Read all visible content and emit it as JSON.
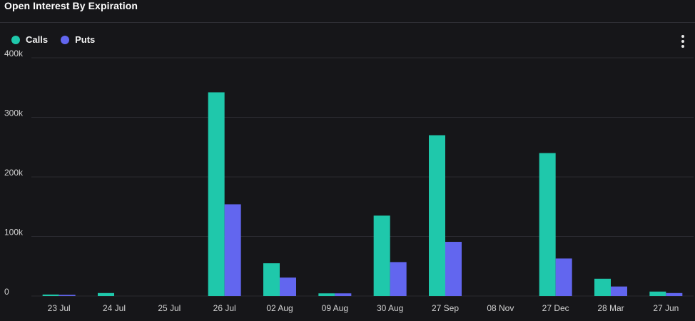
{
  "header": {
    "title": "Open Interest By Expiration"
  },
  "legend": {
    "items": [
      {
        "label": "Calls",
        "color": "#1fc8ab"
      },
      {
        "label": "Puts",
        "color": "#6266ef"
      }
    ]
  },
  "menu": {
    "icon": "more-vertical-icon"
  },
  "chart_data": {
    "type": "bar",
    "title": "Open Interest By Expiration",
    "categories": [
      "23 Jul",
      "24 Jul",
      "25 Jul",
      "26 Jul",
      "02 Aug",
      "09 Aug",
      "30 Aug",
      "27 Sep",
      "08 Nov",
      "27 Dec",
      "28 Mar",
      "27 Jun"
    ],
    "series": [
      {
        "name": "Calls",
        "color": "#1fc8ab",
        "values": [
          2500,
          5000,
          0,
          342000,
          55000,
          4500,
          135000,
          270000,
          0,
          240000,
          29000,
          7500
        ]
      },
      {
        "name": "Puts",
        "color": "#6266ef",
        "values": [
          2000,
          0,
          0,
          154000,
          31000,
          4500,
          57000,
          91000,
          0,
          63000,
          16000,
          5000
        ]
      }
    ],
    "ylim": [
      0,
      400000
    ],
    "yticks": [
      0,
      100000,
      200000,
      300000,
      400000
    ],
    "ytick_labels": [
      "0",
      "100k",
      "200k",
      "300k",
      "400k"
    ],
    "grid": true,
    "legend_position": "top-left",
    "xlabel": "",
    "ylabel": ""
  }
}
